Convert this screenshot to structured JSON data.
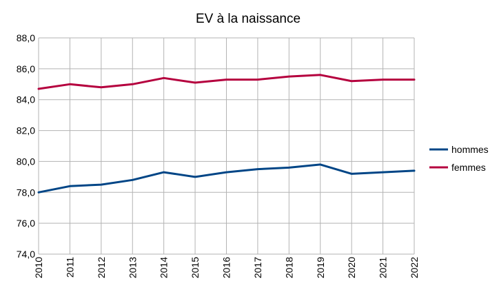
{
  "chart_data": {
    "type": "line",
    "title": "EV à la naissance",
    "xlabel": "",
    "ylabel": "",
    "x": [
      "2010",
      "2011",
      "2012",
      "2013",
      "2014",
      "2015",
      "2016",
      "2017",
      "2018",
      "2019",
      "2020",
      "2021",
      "2022"
    ],
    "ylim": [
      74,
      88
    ],
    "yticks": [
      "74,0",
      "76,0",
      "78,0",
      "80,0",
      "82,0",
      "84,0",
      "86,0",
      "88,0"
    ],
    "grid": true,
    "legend": "right",
    "series": [
      {
        "name": "hommes",
        "color": "#004586",
        "values": [
          78.0,
          78.4,
          78.5,
          78.8,
          79.3,
          79.0,
          79.3,
          79.5,
          79.6,
          79.8,
          79.2,
          79.3,
          79.4
        ]
      },
      {
        "name": "femmes",
        "color": "#b5003e",
        "values": [
          84.7,
          85.0,
          84.8,
          85.0,
          85.4,
          85.1,
          85.3,
          85.3,
          85.5,
          85.6,
          85.2,
          85.3,
          85.3
        ]
      }
    ]
  }
}
